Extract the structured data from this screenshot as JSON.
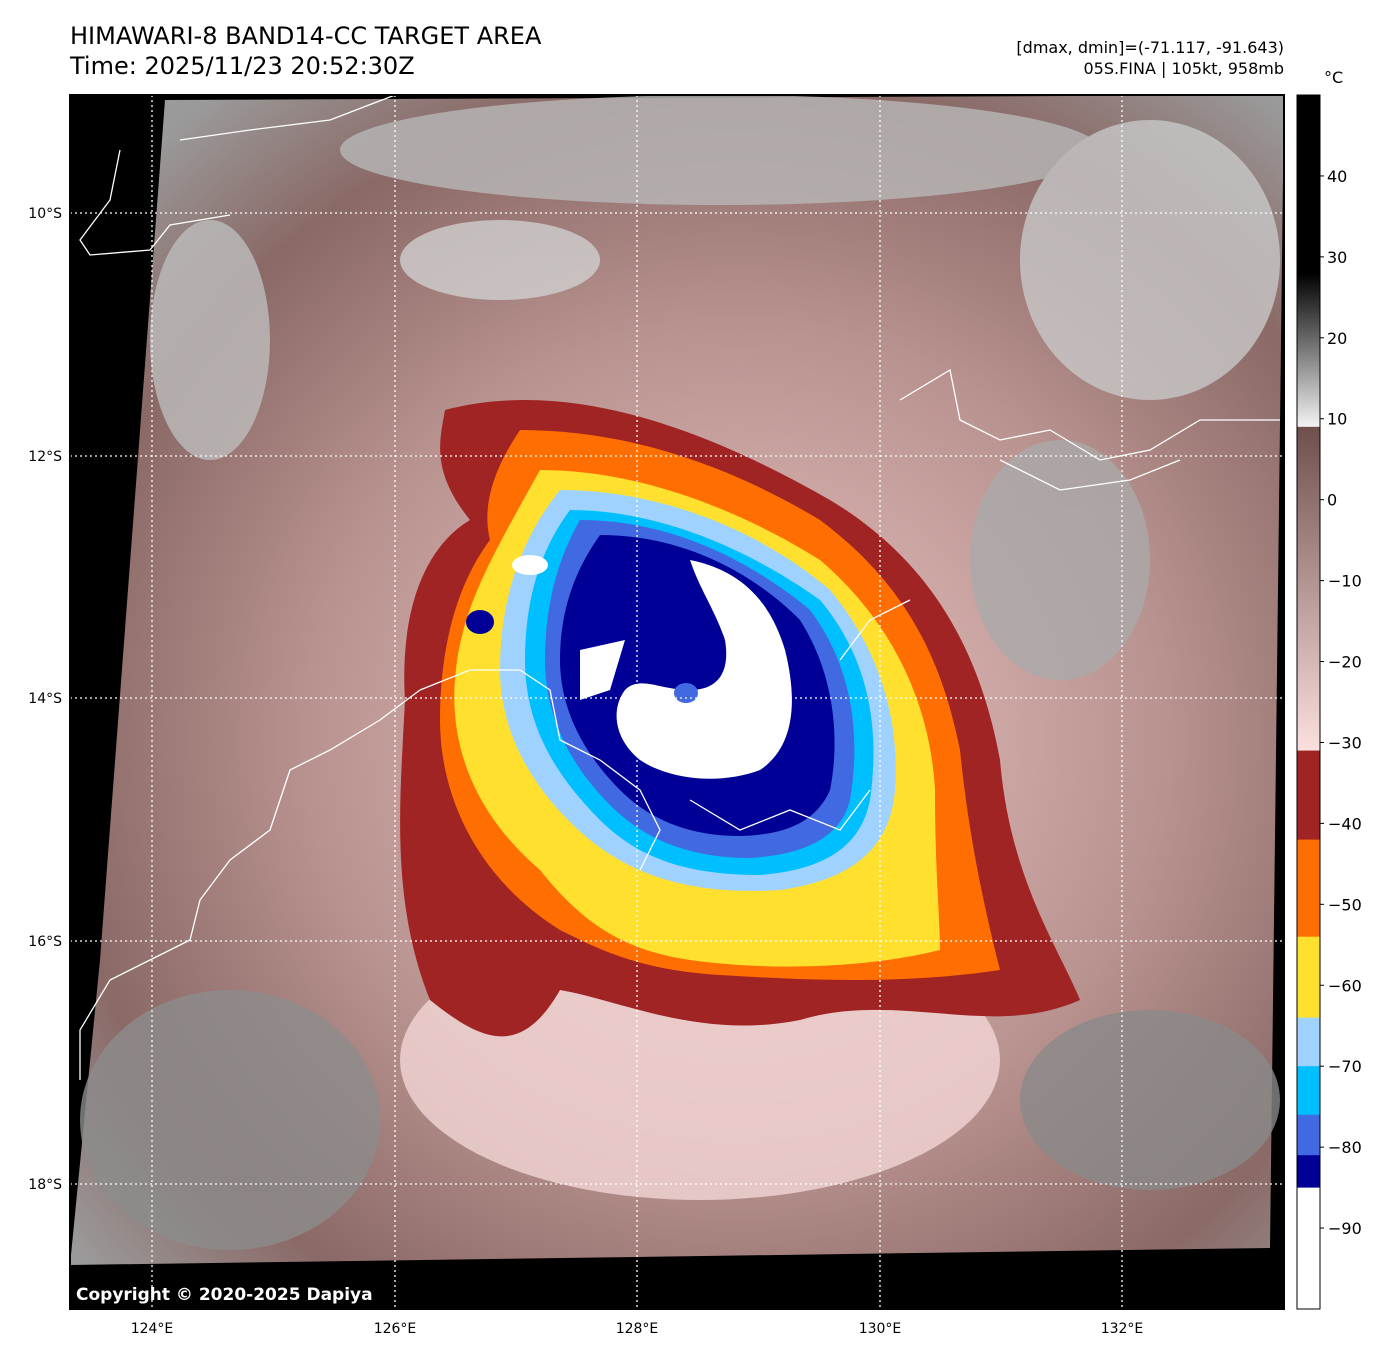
{
  "header": {
    "title": "HIMAWARI-8 BAND14-CC TARGET AREA",
    "time": "Time: 2025/11/23 20:52:30Z",
    "range_info": "[dmax, dmin]=(-71.117, -91.643)",
    "storm_info": "05S.FINA | 105kt, 958mb"
  },
  "map": {
    "lon_labels": [
      "124°E",
      "126°E",
      "128°E",
      "130°E",
      "132°E"
    ],
    "lat_labels": [
      "10°S",
      "12°S",
      "14°S",
      "16°S",
      "18°S"
    ],
    "copyright": "Copyright © 2020-2025 Dapiya"
  },
  "colorbar": {
    "unit": "°C",
    "range": [
      -100,
      50
    ],
    "tick_values": [
      40,
      30,
      20,
      10,
      0,
      -10,
      -20,
      -30,
      -40,
      -50,
      -60,
      -70,
      -80,
      -90
    ],
    "tick_labels": [
      "40",
      "30",
      "20",
      "10",
      "0",
      "−10",
      "−20",
      "−30",
      "−40",
      "−50",
      "−60",
      "−70",
      "−80",
      "−90"
    ],
    "segments": [
      {
        "from": 28,
        "to": 50,
        "color": "#000000"
      },
      {
        "from": 9,
        "to": 28,
        "gradient": [
          "#f4f4f4",
          "#000000"
        ]
      },
      {
        "from": -31,
        "to": 9,
        "gradient": [
          "#fbe0e0",
          "#6e4f4c"
        ]
      },
      {
        "from": -42,
        "to": -31,
        "color": "#a02424"
      },
      {
        "from": -54,
        "to": -42,
        "color": "#ff6e00"
      },
      {
        "from": -64,
        "to": -54,
        "color": "#ffe02e"
      },
      {
        "from": -70,
        "to": -64,
        "color": "#a0d2ff"
      },
      {
        "from": -76,
        "to": -70,
        "color": "#00bfff"
      },
      {
        "from": -81,
        "to": -76,
        "color": "#4169e1"
      },
      {
        "from": -85,
        "to": -81,
        "color": "#000096"
      },
      {
        "from": -100,
        "to": -85,
        "color": "#ffffff"
      }
    ]
  }
}
